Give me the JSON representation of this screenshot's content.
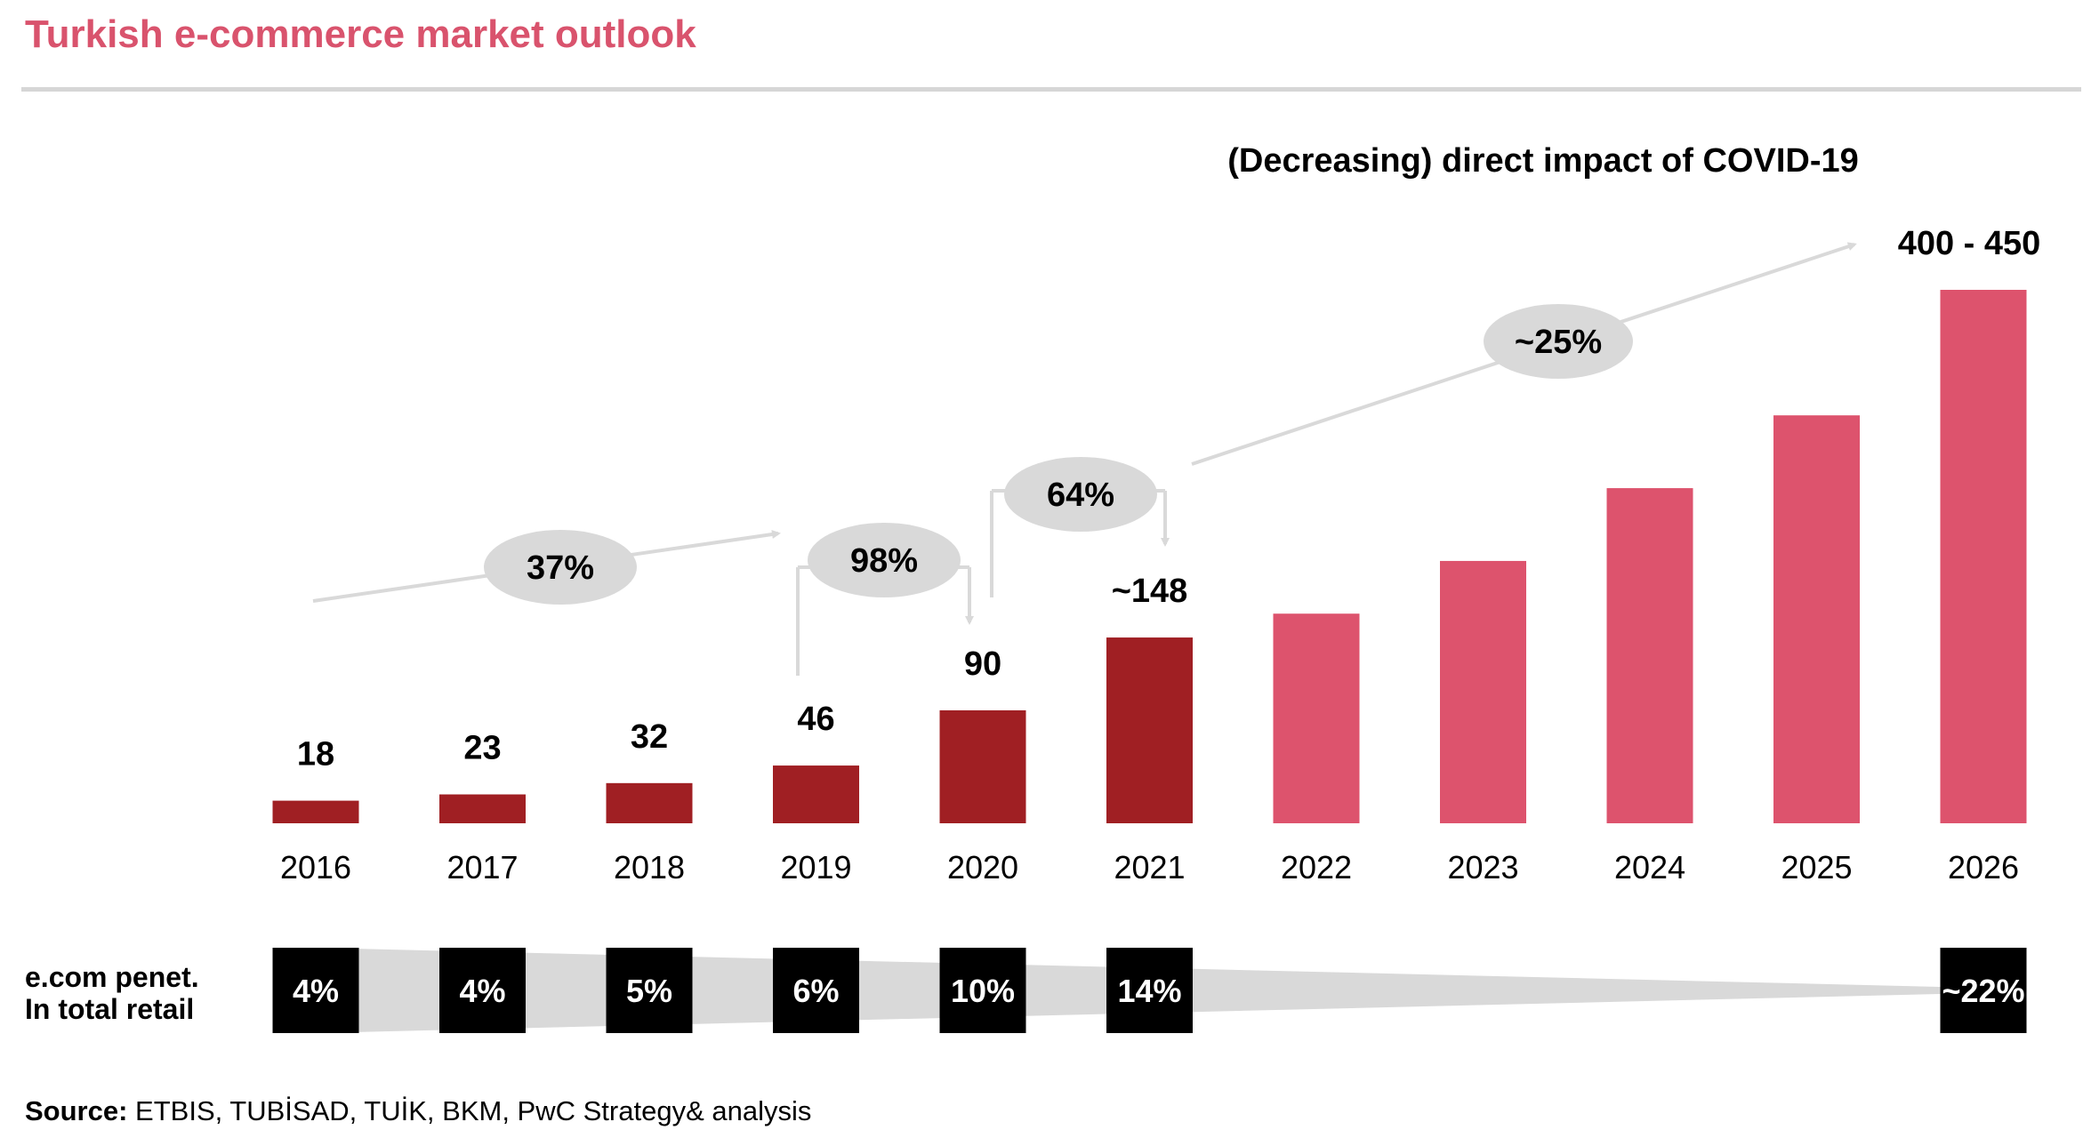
{
  "title": "Turkish e-commerce market outlook",
  "source": {
    "label": "Source:",
    "text": "ETBIS, TUBİSAD, TUİK, BKM, PwC Strategy& analysis"
  },
  "colors": {
    "title": "#d9536d",
    "actual_bar": "#a01f23",
    "forecast_bar": "#dd536d",
    "bubble": "#d9d9d9",
    "arrow": "#d9d9d9",
    "penetration_box": "#000000"
  },
  "chart_data": {
    "type": "bar",
    "title": "",
    "annotation": "(Decreasing) direct impact of COVID-19",
    "categories": [
      "2016",
      "2017",
      "2018",
      "2019",
      "2020",
      "2021",
      "2022",
      "2023",
      "2024",
      "2025",
      "2026"
    ],
    "values": [
      18,
      23,
      32,
      46,
      90,
      148,
      167,
      209,
      267,
      325,
      425
    ],
    "value_labels": [
      "18",
      "23",
      "32",
      "46",
      "90",
      "~148",
      "",
      "",
      "",
      "",
      "400 - 450"
    ],
    "actual_or_forecast": [
      "actual",
      "actual",
      "actual",
      "actual",
      "actual",
      "actual",
      "forecast",
      "forecast",
      "forecast",
      "forecast",
      "forecast"
    ],
    "growth_annotations": [
      {
        "label": "37%",
        "from": "2016",
        "to": "2019"
      },
      {
        "label": "98%",
        "from": "2019",
        "to": "2020"
      },
      {
        "label": "64%",
        "from": "2020",
        "to": "2021"
      },
      {
        "label": "~25%",
        "from": "2021",
        "to": "2026"
      }
    ],
    "penetration": {
      "label_line1": "e.com penet.",
      "label_line2": "In total retail",
      "entries": [
        {
          "year": "2016",
          "value": "4%"
        },
        {
          "year": "2017",
          "value": "4%"
        },
        {
          "year": "2018",
          "value": "5%"
        },
        {
          "year": "2019",
          "value": "6%"
        },
        {
          "year": "2020",
          "value": "10%"
        },
        {
          "year": "2021",
          "value": "14%"
        },
        {
          "year": "2026",
          "value": "~22%"
        }
      ]
    },
    "ylim": [
      0,
      425
    ],
    "grid": false,
    "legend": "none"
  }
}
